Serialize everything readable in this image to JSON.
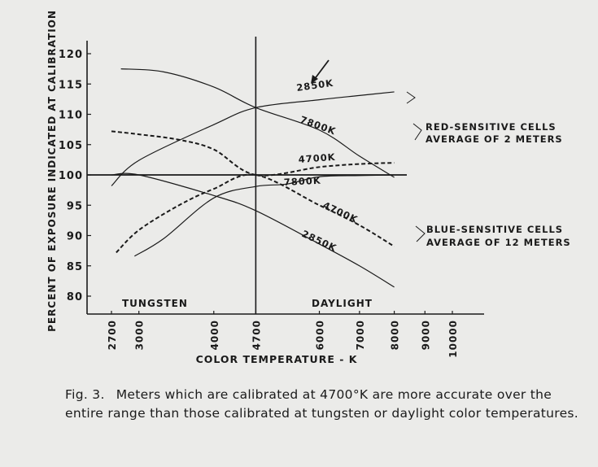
{
  "chart_data": {
    "type": "line",
    "title": "",
    "xlabel": "COLOR TEMPERATURE - K",
    "ylabel": "PERCENT OF EXPOSURE INDICATED AT CALIBRATION",
    "x_scale": "log",
    "xlim": [
      2700,
      10000
    ],
    "ylim": [
      80,
      120
    ],
    "x_ticks": [
      2700,
      3000,
      4000,
      4700,
      6000,
      7000,
      8000,
      9000,
      10000
    ],
    "y_ticks": [
      80,
      85,
      90,
      95,
      100,
      105,
      110,
      115,
      120
    ],
    "grid": false,
    "reference_lines": {
      "horizontal": 100,
      "vertical": 4700
    },
    "region_labels": {
      "left": "TUNGSTEN",
      "right": "DAYLIGHT"
    },
    "groups": [
      {
        "label_line1": "RED-SENSITIVE CELLS",
        "label_line2": "AVERAGE OF 2 METERS"
      },
      {
        "label_line1": "BLUE-SENSITIVE CELLS",
        "label_line2": "AVERAGE OF 12 METERS"
      }
    ],
    "series": [
      {
        "name": "2850K",
        "group": 0,
        "style": "solid",
        "arrow": true,
        "x": [
          2700,
          3000,
          4000,
          4700,
          6000,
          7000,
          8000
        ],
        "y": [
          98.2,
          102.4,
          108.3,
          111.1,
          112.4,
          113.1,
          113.7
        ]
      },
      {
        "name": "7800K",
        "group": 0,
        "style": "solid",
        "x": [
          2800,
          3300,
          4000,
          4700,
          6000,
          7000,
          8000
        ],
        "y": [
          117.5,
          117.0,
          114.5,
          111.1,
          107.4,
          103.1,
          99.6
        ]
      },
      {
        "name": "4700K",
        "group": 0,
        "style": "dashed",
        "x": [
          2700,
          3000,
          3500,
          4000,
          4700,
          6000,
          7000,
          8000
        ],
        "y": [
          107.2,
          106.7,
          105.8,
          104.2,
          100.0,
          101.3,
          101.8,
          102.0
        ]
      },
      {
        "name": "7800K",
        "group": 1,
        "style": "solid",
        "x": [
          2950,
          3300,
          4000,
          4700,
          5300,
          6000,
          7000,
          8000
        ],
        "y": [
          86.6,
          89.5,
          96.2,
          98.1,
          98.5,
          99.7,
          99.9,
          100.0
        ]
      },
      {
        "name": "4700K",
        "group": 1,
        "style": "dashed",
        "x": [
          2750,
          3000,
          3500,
          4000,
          4700,
          6000,
          7000,
          8000
        ],
        "y": [
          87.2,
          90.9,
          95.0,
          97.7,
          100.0,
          95.0,
          91.7,
          88.2
        ]
      },
      {
        "name": "2850K",
        "group": 1,
        "style": "solid",
        "x": [
          2700,
          3000,
          4000,
          4700,
          6000,
          7000,
          8000
        ],
        "y": [
          100.0,
          100.0,
          96.6,
          94.1,
          88.6,
          85.0,
          81.5
        ]
      }
    ]
  },
  "caption": {
    "figure": "Fig. 3.",
    "text": "Meters which are calibrated at 4700°K are more accurate over the entire range than those calibrated at tungsten or daylight color temperatures."
  }
}
